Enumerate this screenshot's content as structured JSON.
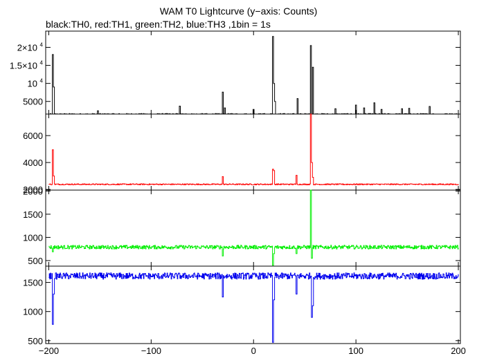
{
  "header": {
    "title": "WAM T0 Lightcurve (y−axis: Counts)",
    "subtitle": "black:TH0, red:TH1, green:TH2, blue:TH3 ,1bin = 1s"
  },
  "chart_data": [
    {
      "type": "line",
      "series": [
        {
          "name": "TH0",
          "color": "#000000"
        }
      ],
      "ylim": [
        1500,
        24500
      ],
      "yticks": [
        {
          "value": 5000,
          "label": "5000"
        },
        {
          "value": 10000,
          "label": "10",
          "exp": "4"
        },
        {
          "value": 15000,
          "label": "1.5×10",
          "exp": "4"
        },
        {
          "value": 20000,
          "label": "2×10",
          "exp": "4"
        }
      ],
      "baseline": 1400,
      "noise": 250,
      "spikes": [
        {
          "x": -196,
          "y": 18000
        },
        {
          "x": -195,
          "y": 9000
        },
        {
          "x": -152,
          "y": 2400
        },
        {
          "x": -72,
          "y": 3700
        },
        {
          "x": -30,
          "y": 7600
        },
        {
          "x": -28,
          "y": 3200
        },
        {
          "x": 0,
          "y": 2800
        },
        {
          "x": 19,
          "y": 23000
        },
        {
          "x": 20,
          "y": 10000
        },
        {
          "x": 21,
          "y": 5000
        },
        {
          "x": 43,
          "y": 5800
        },
        {
          "x": 56,
          "y": 20500
        },
        {
          "x": 58,
          "y": 14500
        },
        {
          "x": 80,
          "y": 3000
        },
        {
          "x": 100,
          "y": 4000
        },
        {
          "x": 108,
          "y": 3200
        },
        {
          "x": 118,
          "y": 4600
        },
        {
          "x": 125,
          "y": 2800
        },
        {
          "x": 145,
          "y": 3000
        },
        {
          "x": 152,
          "y": 3100
        },
        {
          "x": 172,
          "y": 3600
        }
      ]
    },
    {
      "type": "line",
      "series": [
        {
          "name": "TH1",
          "color": "#ff0000"
        }
      ],
      "ylim": [
        1950,
        7600
      ],
      "yticks": [
        {
          "value": 2000,
          "label": "2000"
        },
        {
          "value": 4000,
          "label": "4000"
        },
        {
          "value": 6000,
          "label": "6000"
        }
      ],
      "baseline": 2380,
      "noise": 40,
      "spikes": [
        {
          "x": -196,
          "y": 4950
        },
        {
          "x": -195,
          "y": 3000
        },
        {
          "x": -30,
          "y": 2950
        },
        {
          "x": 19,
          "y": 3500
        },
        {
          "x": 20,
          "y": 3400
        },
        {
          "x": 42,
          "y": 3050
        },
        {
          "x": 56,
          "y": 7600
        },
        {
          "x": 57,
          "y": 4000
        },
        {
          "x": 58,
          "y": 2900
        }
      ]
    },
    {
      "type": "line",
      "series": [
        {
          "name": "TH2",
          "color": "#00ee00"
        }
      ],
      "ylim": [
        380,
        2020
      ],
      "yticks": [
        {
          "value": 500,
          "label": "500"
        },
        {
          "value": 1000,
          "label": "1000"
        },
        {
          "value": 1500,
          "label": "1500"
        },
        {
          "value": 2000,
          "label": "2000"
        }
      ],
      "baseline": 790,
      "noise": 40,
      "spikes": [
        {
          "x": -196,
          "y": 690
        },
        {
          "x": -30,
          "y": 600
        },
        {
          "x": 19,
          "y": 400
        },
        {
          "x": 20,
          "y": 650
        },
        {
          "x": 42,
          "y": 650
        },
        {
          "x": 56,
          "y": 2020
        },
        {
          "x": 57,
          "y": 550
        }
      ]
    },
    {
      "type": "line",
      "series": [
        {
          "name": "TH3",
          "color": "#0000ee"
        }
      ],
      "ylim": [
        450,
        1780
      ],
      "yticks": [
        {
          "value": 500,
          "label": "500"
        },
        {
          "value": 1000,
          "label": "1000"
        },
        {
          "value": 1500,
          "label": "1500"
        }
      ],
      "baseline": 1610,
      "noise": 55,
      "spikes": [
        {
          "x": -196,
          "y": 780
        },
        {
          "x": -195,
          "y": 1300
        },
        {
          "x": -30,
          "y": 1250
        },
        {
          "x": 19,
          "y": 470
        },
        {
          "x": 20,
          "y": 1200
        },
        {
          "x": 42,
          "y": 1300
        },
        {
          "x": 57,
          "y": 900
        },
        {
          "x": 58,
          "y": 1100
        }
      ]
    }
  ],
  "xaxis": {
    "xlim": [
      -203,
      202
    ],
    "ticks": [
      {
        "value": -200,
        "label": "−200"
      },
      {
        "value": -100,
        "label": "−100"
      },
      {
        "value": 0,
        "label": "0"
      },
      {
        "value": 100,
        "label": "100"
      },
      {
        "value": 200,
        "label": "200"
      }
    ]
  }
}
